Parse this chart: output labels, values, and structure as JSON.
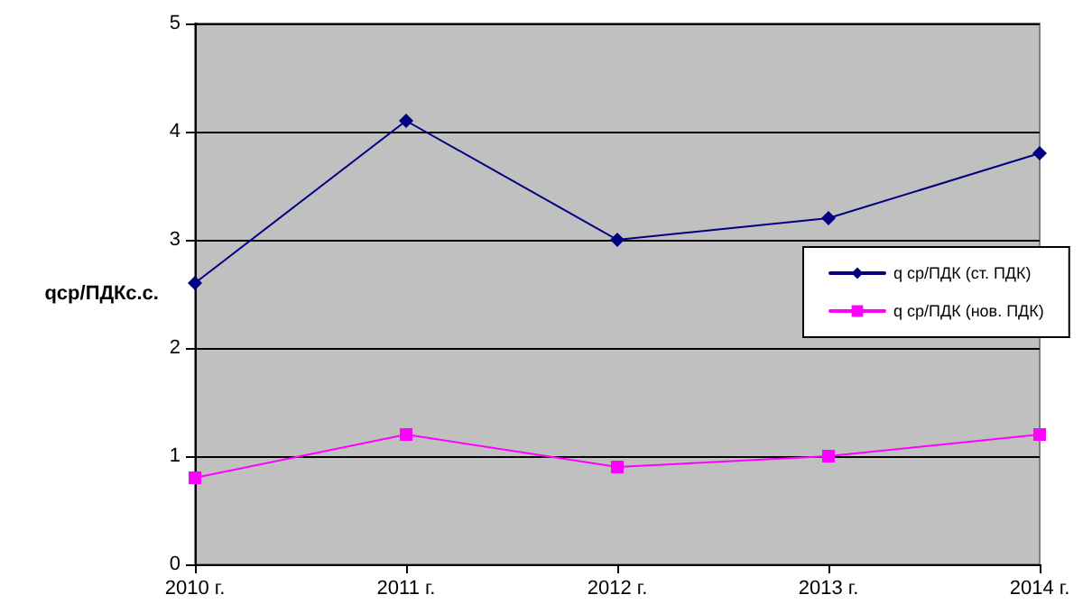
{
  "chart_data": {
    "type": "line",
    "ylabel": "qср/ПДКс.с.",
    "categories": [
      "2010 г.",
      "2011 г.",
      "2012 г.",
      "2013 г.",
      "2014 г."
    ],
    "series": [
      {
        "name": "q ср/ПДК (ст. ПДК)",
        "color": "#000080",
        "marker": "diamond",
        "values": [
          2.6,
          4.1,
          3.0,
          3.2,
          3.8
        ]
      },
      {
        "name": "q ср/ПДК (нов. ПДК)",
        "color": "#ff00ff",
        "marker": "square",
        "values": [
          0.8,
          1.2,
          0.9,
          1.0,
          1.2
        ]
      }
    ],
    "ylim": [
      0,
      5
    ],
    "yticks": [
      0,
      1,
      2,
      3,
      4,
      5
    ],
    "grid": "y",
    "legend": "right",
    "line_style": "solid"
  }
}
